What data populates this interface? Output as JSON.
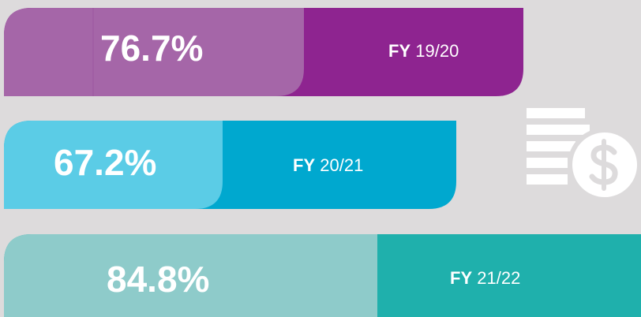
{
  "items": [
    {
      "value": "76.7%",
      "label_bold": "FY",
      "label": "19/20"
    },
    {
      "value": "67.2%",
      "label_bold": "FY",
      "label": "20/21"
    },
    {
      "value": "84.8%",
      "label_bold": "FY",
      "label": "21/22"
    }
  ]
}
